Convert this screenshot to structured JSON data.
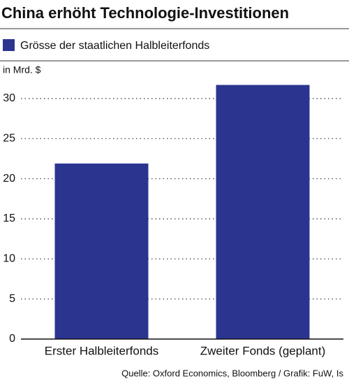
{
  "chart_data": {
    "type": "bar",
    "title": "China erhöht Technologie-Investitionen",
    "y_label": "in Mrd. $",
    "categories": [
      "Erster Halbleiterfonds",
      "Zweiter Fonds (geplant)"
    ],
    "series": [
      {
        "name": "Grösse der staatlichen Halbleiterfonds",
        "color": "#2b3590",
        "values": [
          21.9,
          31.7
        ]
      }
    ],
    "ylim": [
      0,
      30
    ],
    "yticks": [
      0,
      5,
      10,
      15,
      20,
      25,
      30
    ],
    "grid": true,
    "source": "Quelle: Oxford Economics, Bloomberg / Grafik: FuW, Is"
  }
}
